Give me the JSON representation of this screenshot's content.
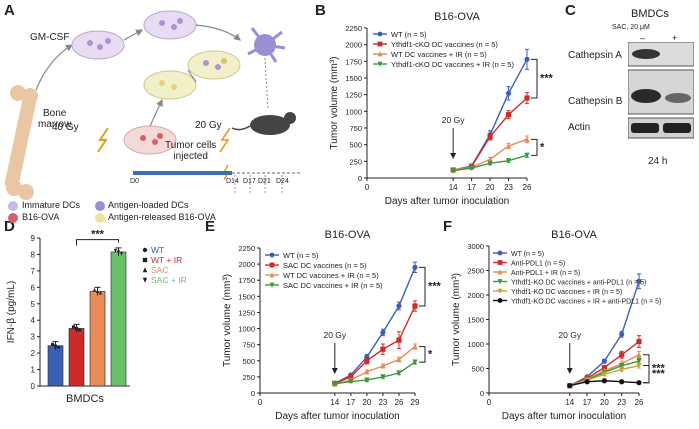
{
  "panelA": {
    "letter": "A",
    "labels": {
      "gmcsf": "GM-CSF",
      "bone_marrow": "Bone\nmarrow",
      "gy40": "40 Gy",
      "gy20": "20 Gy",
      "tumor_cells": "Tumor cells\ninjected"
    },
    "timeline": [
      "D0",
      "D14",
      "D17",
      "D21",
      "D24"
    ],
    "legend": [
      {
        "label": "Immature DCs"
      },
      {
        "label": "Antigen-loaded DCs"
      },
      {
        "label": "B16-OVA"
      },
      {
        "label": "Antigen-released B16-OVA"
      }
    ]
  },
  "panelC": {
    "letter": "C",
    "title": "BMDCs",
    "treatment": "SAC, 20 μM",
    "lanes": [
      "–",
      "+"
    ],
    "bands": [
      "Cathepsin A",
      "Cathepsin B",
      "Actin"
    ],
    "time": "24 h"
  },
  "chart_data": [
    {
      "panel": "B",
      "type": "line",
      "title": "B16-OVA",
      "xlabel": "Days after tumor inoculation",
      "ylabel": "Tumor volume (mm³)",
      "x": [
        0,
        14,
        17,
        20,
        23,
        26
      ],
      "xticks": [
        0,
        14,
        17,
        20,
        23,
        26
      ],
      "ylim": [
        0,
        2250
      ],
      "yticks": [
        0,
        250,
        500,
        750,
        1000,
        1250,
        1500,
        1750,
        2000,
        2250
      ],
      "annotation": "20 Gy",
      "annotation_x": 14,
      "series": [
        {
          "name": "WT (n = 5)",
          "color": "#3b5fb5",
          "marker": "circle",
          "values": [
            null,
            120,
            180,
            650,
            1270,
            1780
          ],
          "err": [
            0,
            20,
            30,
            60,
            100,
            150
          ]
        },
        {
          "name": "Ythdf1-cKO DC vaccines (n = 5)",
          "color": "#cf2a2a",
          "marker": "square",
          "values": [
            null,
            120,
            170,
            620,
            950,
            1200
          ],
          "err": [
            0,
            20,
            25,
            50,
            60,
            80
          ]
        },
        {
          "name": "WT DC vaccines + IR (n = 5)",
          "color": "#e88a5a",
          "marker": "triangle-up",
          "values": [
            null,
            120,
            160,
            280,
            480,
            580
          ],
          "err": [
            0,
            15,
            20,
            30,
            40,
            50
          ]
        },
        {
          "name": "Ythdf1-cKO DC vaccines + IR (n = 5)",
          "color": "#3a9a3a",
          "marker": "triangle-down",
          "values": [
            null,
            110,
            150,
            220,
            260,
            340
          ],
          "err": [
            0,
            15,
            15,
            20,
            25,
            30
          ]
        }
      ],
      "sig": [
        {
          "text": "***"
        },
        {
          "text": "*"
        }
      ]
    },
    {
      "panel": "D",
      "type": "bar",
      "title": "",
      "xlabel": "BMDCs",
      "ylabel": "IFN-β (pg/mL)",
      "ylim": [
        0,
        9
      ],
      "yticks": [
        0,
        1,
        2,
        3,
        4,
        5,
        6,
        7,
        8,
        9
      ],
      "series": [
        {
          "name": "WT",
          "color": "#3b5fb5",
          "marker": "circle",
          "values": [
            2.45
          ]
        },
        {
          "name": "WT + IR",
          "color": "#cf2a2a",
          "marker": "square",
          "values": [
            3.5
          ]
        },
        {
          "name": "SAC",
          "color": "#e88a5a",
          "marker": "triangle-up",
          "values": [
            5.75
          ]
        },
        {
          "name": "SAC + IR",
          "color": "#6abf6a",
          "marker": "triangle-down",
          "values": [
            8.15
          ]
        }
      ],
      "sig": "***"
    },
    {
      "panel": "E",
      "type": "line",
      "title": "B16-OVA",
      "xlabel": "Days after tumor inoculation",
      "ylabel": "Tumor volume (mm³)",
      "x": [
        0,
        14,
        17,
        20,
        23,
        26,
        29
      ],
      "xticks": [
        0,
        14,
        17,
        20,
        23,
        26,
        29
      ],
      "ylim": [
        0,
        2250
      ],
      "yticks": [
        0,
        250,
        500,
        750,
        1000,
        1250,
        1500,
        1750,
        2000,
        2250
      ],
      "annotation": "20 Gy",
      "annotation_x": 14,
      "series": [
        {
          "name": "WT (n = 5)",
          "color": "#3b5fb5",
          "marker": "circle",
          "values": [
            null,
            150,
            280,
            560,
            940,
            1350,
            1950
          ],
          "err": [
            0,
            15,
            25,
            40,
            50,
            60,
            80
          ]
        },
        {
          "name": "SAC DC vaccines (n = 5)",
          "color": "#cf2a2a",
          "marker": "square",
          "values": [
            null,
            150,
            250,
            500,
            680,
            820,
            1350
          ],
          "err": [
            0,
            15,
            30,
            50,
            80,
            130,
            80
          ]
        },
        {
          "name": "WT DC vaccines + IR (n = 5)",
          "color": "#e88a5a",
          "marker": "triangle-up",
          "values": [
            null,
            140,
            200,
            330,
            420,
            520,
            720
          ],
          "err": [
            0,
            15,
            20,
            25,
            30,
            35,
            40
          ]
        },
        {
          "name": "SAC DC vaccines + IR (n = 5)",
          "color": "#3a9a3a",
          "marker": "triangle-down",
          "values": [
            null,
            140,
            180,
            200,
            250,
            310,
            480
          ],
          "err": [
            0,
            10,
            15,
            20,
            20,
            25,
            30
          ]
        }
      ],
      "sig": [
        {
          "text": "***"
        },
        {
          "text": "*"
        }
      ]
    },
    {
      "panel": "F",
      "type": "line",
      "title": "B16-OVA",
      "xlabel": "Days after tumor inoculation",
      "ylabel": "Tumor volume (mm³)",
      "x": [
        0,
        14,
        17,
        20,
        23,
        26
      ],
      "xticks": [
        0,
        14,
        17,
        20,
        23,
        26
      ],
      "ylim": [
        0,
        3000
      ],
      "yticks": [
        0,
        500,
        1000,
        1500,
        2000,
        2500,
        3000
      ],
      "annotation": "20 Gy",
      "annotation_x": 14,
      "series": [
        {
          "name": "WT (n = 5)",
          "color": "#3b5fb5",
          "marker": "circle",
          "values": [
            null,
            150,
            330,
            650,
            1200,
            2280
          ],
          "err": [
            0,
            15,
            25,
            40,
            60,
            150
          ]
        },
        {
          "name": "Anti-PDL1 (n = 5)",
          "color": "#cf2a2a",
          "marker": "square",
          "values": [
            null,
            150,
            300,
            520,
            780,
            1050
          ],
          "err": [
            0,
            15,
            25,
            40,
            70,
            120
          ]
        },
        {
          "name": "Anti-PDL1 + IR (n = 5)",
          "color": "#e88a5a",
          "marker": "triangle-up",
          "values": [
            null,
            150,
            280,
            450,
            600,
            780
          ],
          "err": [
            0,
            15,
            20,
            30,
            50,
            70
          ]
        },
        {
          "name": "Ythdf1-KO DC vaccines + anti-PDL1 (n = 5)",
          "color": "#3a9a3a",
          "marker": "triangle-down",
          "values": [
            null,
            150,
            270,
            420,
            560,
            650
          ],
          "err": [
            0,
            15,
            20,
            30,
            40,
            60
          ]
        },
        {
          "name": "Ythdf1-KO DC vaccines + IR (n = 5)",
          "color": "#c8a23a",
          "marker": "triangle-down",
          "values": [
            null,
            150,
            260,
            380,
            480,
            560
          ],
          "err": [
            0,
            15,
            20,
            25,
            35,
            50
          ]
        },
        {
          "name": "Ythdf1-KO DC vaccines + IR + anti-PDL1 (n = 5)",
          "color": "#111111",
          "marker": "circle",
          "values": [
            null,
            150,
            230,
            250,
            230,
            210
          ],
          "err": [
            0,
            10,
            15,
            20,
            20,
            20
          ]
        }
      ],
      "sig": [
        {
          "text": "***"
        },
        {
          "text": "***"
        }
      ]
    }
  ]
}
